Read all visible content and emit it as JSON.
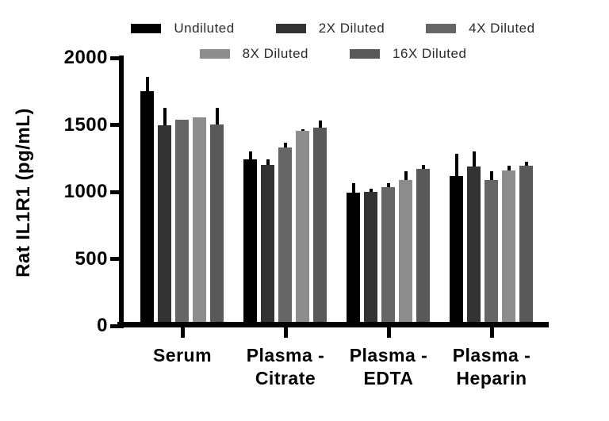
{
  "chart_data": {
    "type": "bar",
    "title": "",
    "ylabel": "Rat IL1R1 (pg/mL)",
    "xlabel": "",
    "ylim": [
      0,
      2000
    ],
    "yticks": [
      0,
      500,
      1000,
      1500,
      2000
    ],
    "grid": false,
    "legend_position": "top",
    "error_bars": "sd, vertical whisker, no cap",
    "categories": [
      "Serum",
      "Plasma -\nCitrate",
      "Plasma -\nEDTA",
      "Plasma -\nHeparin"
    ],
    "series": [
      {
        "name": "Undiluted",
        "color": "#000000",
        "values": [
          1750,
          1240,
          995,
          1120
        ],
        "errors": [
          110,
          65,
          70,
          165
        ]
      },
      {
        "name": "2X Diluted",
        "color": "#333333",
        "values": [
          1495,
          1200,
          1000,
          1190
        ],
        "errors": [
          135,
          45,
          25,
          115
        ]
      },
      {
        "name": "4X Diluted",
        "color": "#666666",
        "values": [
          1540,
          1330,
          1035,
          1090
        ],
        "errors": [
          0,
          40,
          30,
          65
        ]
      },
      {
        "name": "8X Diluted",
        "color": "#8d8d8d",
        "values": [
          1555,
          1455,
          1090,
          1160
        ],
        "errors": [
          0,
          15,
          65,
          35
        ]
      },
      {
        "name": "16X Diluted",
        "color": "#595959",
        "values": [
          1505,
          1480,
          1170,
          1195
        ],
        "errors": [
          120,
          55,
          30,
          30
        ]
      }
    ],
    "legend_rows": [
      [
        0,
        1,
        2
      ],
      [
        3,
        4
      ]
    ]
  }
}
